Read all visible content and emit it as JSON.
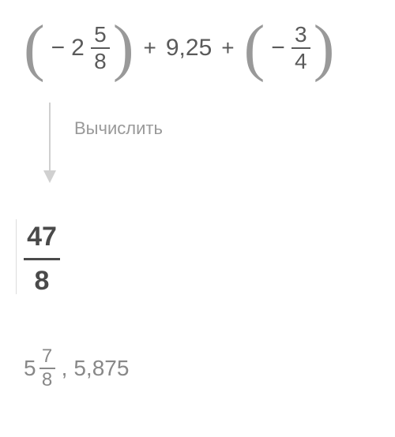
{
  "expression": {
    "term1": {
      "sign": "−",
      "whole": "2",
      "num": "5",
      "den": "8"
    },
    "op1": "+",
    "term2": "9,25",
    "op2": "+",
    "term3": {
      "sign": "−",
      "num": "3",
      "den": "4"
    }
  },
  "action_label": "Вычислить",
  "result": {
    "num": "47",
    "den": "8"
  },
  "alt_results": {
    "mixed": {
      "whole": "5",
      "num": "7",
      "den": "8"
    },
    "separator": ",",
    "decimal": "5,875"
  },
  "colors": {
    "text_primary": "#5a5a5a",
    "text_bold": "#4a4a4a",
    "text_muted": "#999",
    "text_alt": "#888",
    "arrow": "#d0d0d0",
    "background": "#ffffff"
  }
}
